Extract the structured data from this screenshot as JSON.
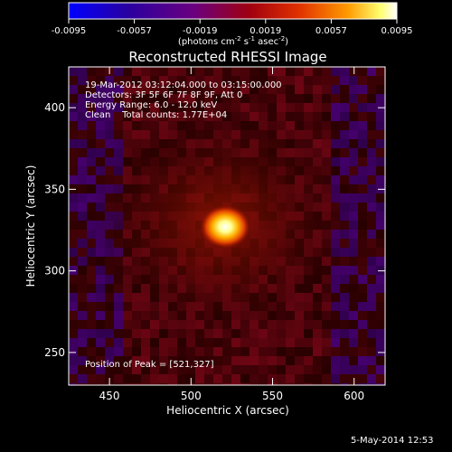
{
  "colorbar": {
    "ticks": [
      "-0.0095",
      "-0.0057",
      "-0.0019",
      "0.0019",
      "0.0057",
      "0.0095"
    ],
    "min": -0.0095,
    "max": 0.0095,
    "units_main": "(photons cm",
    "units_sup1": "-2",
    "units_mid": " s",
    "units_sup2": "-1",
    "units_end": " asec",
    "units_sup3": "-2",
    "units_close": ")"
  },
  "chart_data": {
    "type": "heatmap",
    "title": "Reconstructed RHESSI Image",
    "xlabel": "Heliocentric X (arcsec)",
    "ylabel": "Heliocentric Y (arcsec)",
    "xlim": [
      425,
      619
    ],
    "ylim": [
      230,
      425
    ],
    "xticks": [
      450,
      500,
      550,
      600
    ],
    "yticks": [
      250,
      300,
      350,
      400
    ],
    "xtick_labels": [
      "450",
      "500",
      "550",
      "600"
    ],
    "ytick_labels": [
      "250",
      "300",
      "350",
      "400"
    ],
    "peak": [
      521,
      327
    ],
    "annotations": [
      "19-Mar-2012 03:12:04.000 to 03:15:00.000",
      "Detectors: 3F 5F 6F 7F 8F 9F, Att 0",
      "Energy Range: 6.0 - 12.0 keV",
      "Clean    Total counts: 1.77E+04"
    ],
    "peak_label": "Position of Peak = [521,327]"
  },
  "timestamp": "5-May-2014 12:53",
  "colors": {
    "background": "#000000",
    "colormap": [
      "#0000ff",
      "#2a00a0",
      "#5a0090",
      "#8a0000",
      "#e03000",
      "#ff9a00",
      "#ffff80",
      "#ffffff"
    ]
  }
}
